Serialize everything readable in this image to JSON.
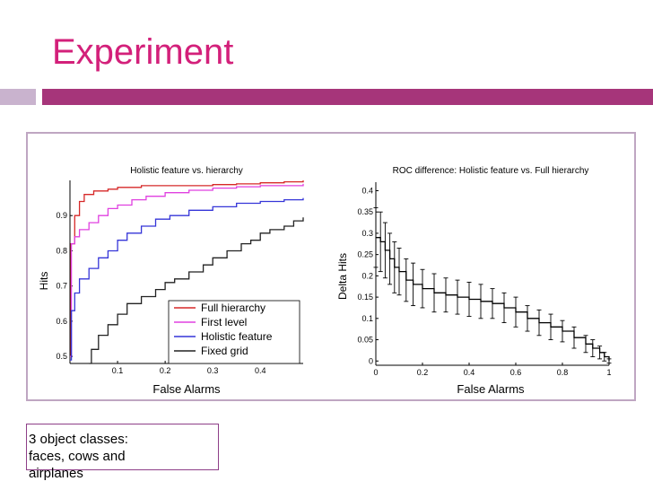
{
  "slide": {
    "title": "Experiment",
    "callout": "3 object classes:\nfaces, cows and\nairplanes"
  },
  "colors": {
    "title": "#d3207a",
    "accent_bar": "#a6357a",
    "accent_bar_light": "#c9b3ce",
    "frame": "#bfa6c2"
  },
  "chart_data": [
    {
      "type": "line",
      "title": "Holistic feature vs. hierarchy",
      "xlabel": "False Alarms",
      "ylabel": "Hits",
      "xlim": [
        0,
        0.49
      ],
      "ylim": [
        0.48,
        1.0
      ],
      "xticks": [
        0.1,
        0.2,
        0.3,
        0.4
      ],
      "yticks": [
        0.5,
        0.6,
        0.7,
        0.8,
        0.9
      ],
      "legend_position": "bottom-right",
      "series": [
        {
          "name": "Full hierarchy",
          "color": "#d62828",
          "x": [
            0,
            0.002,
            0.01,
            0.02,
            0.03,
            0.05,
            0.08,
            0.1,
            0.15,
            0.2,
            0.25,
            0.3,
            0.35,
            0.4,
            0.45,
            0.49
          ],
          "y": [
            0.5,
            0.82,
            0.9,
            0.94,
            0.96,
            0.97,
            0.975,
            0.98,
            0.985,
            0.985,
            0.985,
            0.988,
            0.99,
            0.993,
            0.996,
            1.0
          ]
        },
        {
          "name": "First level",
          "color": "#e040e0",
          "x": [
            0,
            0.003,
            0.01,
            0.02,
            0.04,
            0.06,
            0.08,
            0.1,
            0.13,
            0.16,
            0.2,
            0.25,
            0.3,
            0.35,
            0.4,
            0.45,
            0.49
          ],
          "y": [
            0.5,
            0.82,
            0.84,
            0.86,
            0.88,
            0.9,
            0.92,
            0.93,
            0.945,
            0.955,
            0.965,
            0.972,
            0.978,
            0.982,
            0.985,
            0.985,
            0.99
          ]
        },
        {
          "name": "Holistic feature",
          "color": "#3535d8",
          "x": [
            0,
            0.003,
            0.01,
            0.02,
            0.04,
            0.06,
            0.08,
            0.1,
            0.12,
            0.15,
            0.18,
            0.21,
            0.25,
            0.3,
            0.35,
            0.4,
            0.45,
            0.49
          ],
          "y": [
            0.49,
            0.63,
            0.68,
            0.72,
            0.75,
            0.78,
            0.8,
            0.83,
            0.85,
            0.87,
            0.89,
            0.9,
            0.915,
            0.925,
            0.935,
            0.94,
            0.945,
            0.95
          ]
        },
        {
          "name": "Fixed grid",
          "color": "#222222",
          "x": [
            0.04,
            0.045,
            0.06,
            0.08,
            0.1,
            0.12,
            0.15,
            0.18,
            0.2,
            0.22,
            0.25,
            0.28,
            0.3,
            0.33,
            0.36,
            0.38,
            0.4,
            0.42,
            0.45,
            0.47,
            0.49
          ],
          "y": [
            0.48,
            0.52,
            0.56,
            0.59,
            0.62,
            0.65,
            0.67,
            0.69,
            0.71,
            0.72,
            0.74,
            0.76,
            0.78,
            0.8,
            0.82,
            0.83,
            0.85,
            0.86,
            0.87,
            0.885,
            0.895
          ]
        }
      ]
    },
    {
      "type": "line",
      "title": "ROC difference: Holistic feature vs. Full hierarchy",
      "xlabel": "False Alarms",
      "ylabel": "Delta Hits",
      "xlim": [
        0,
        1
      ],
      "ylim": [
        -0.01,
        0.42
      ],
      "xticks": [
        0,
        0.2,
        0.4,
        0.6,
        0.8,
        1
      ],
      "yticks": [
        0,
        0.05,
        0.1,
        0.15,
        0.2,
        0.25,
        0.3,
        0.35,
        0.4
      ],
      "error_bars": true,
      "series": [
        {
          "color": "#000000",
          "x": [
            0,
            0.02,
            0.04,
            0.06,
            0.08,
            0.1,
            0.13,
            0.16,
            0.2,
            0.25,
            0.3,
            0.35,
            0.4,
            0.45,
            0.5,
            0.55,
            0.6,
            0.65,
            0.7,
            0.75,
            0.8,
            0.85,
            0.9,
            0.93,
            0.96,
            0.98,
            1.0
          ],
          "y": [
            0.29,
            0.28,
            0.26,
            0.24,
            0.22,
            0.21,
            0.19,
            0.18,
            0.17,
            0.16,
            0.155,
            0.15,
            0.145,
            0.14,
            0.135,
            0.125,
            0.115,
            0.1,
            0.09,
            0.08,
            0.07,
            0.055,
            0.04,
            0.03,
            0.02,
            0.01,
            0.0
          ],
          "err": [
            0.07,
            0.07,
            0.065,
            0.06,
            0.06,
            0.055,
            0.05,
            0.05,
            0.045,
            0.045,
            0.04,
            0.04,
            0.04,
            0.04,
            0.035,
            0.035,
            0.035,
            0.03,
            0.03,
            0.03,
            0.025,
            0.025,
            0.02,
            0.02,
            0.015,
            0.01,
            0.005
          ]
        }
      ]
    }
  ]
}
